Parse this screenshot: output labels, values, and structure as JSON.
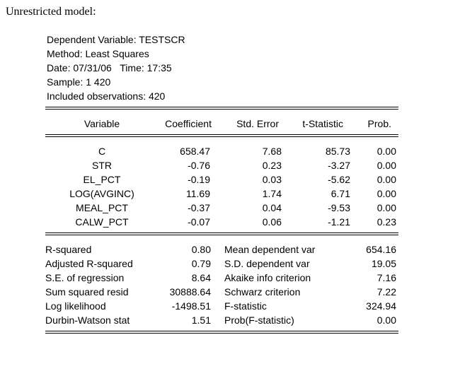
{
  "heading": "Unrestricted model:",
  "header_lines": [
    "Dependent Variable: TESTSCR",
    "Method: Least Squares",
    "Date: 07/31/06   Time: 17:35",
    "Sample: 1 420",
    "Included observations: 420"
  ],
  "columns": {
    "variable": "Variable",
    "coefficient": "Coefficient",
    "std_error": "Std. Error",
    "t_statistic": "t-Statistic",
    "prob": "Prob."
  },
  "rows": [
    {
      "variable": "C",
      "coefficient": "658.47",
      "std_error": "7.68",
      "t_statistic": "85.73",
      "prob": "0.00"
    },
    {
      "variable": "STR",
      "coefficient": "-0.76",
      "std_error": "0.23",
      "t_statistic": "-3.27",
      "prob": "0.00"
    },
    {
      "variable": "EL_PCT",
      "coefficient": "-0.19",
      "std_error": "0.03",
      "t_statistic": "-5.62",
      "prob": "0.00"
    },
    {
      "variable": "LOG(AVGINC)",
      "coefficient": "11.69",
      "std_error": "1.74",
      "t_statistic": "6.71",
      "prob": "0.00"
    },
    {
      "variable": "MEAL_PCT",
      "coefficient": "-0.37",
      "std_error": "0.04",
      "t_statistic": "-9.53",
      "prob": "0.00"
    },
    {
      "variable": "CALW_PCT",
      "coefficient": "-0.07",
      "std_error": "0.06",
      "t_statistic": "-1.21",
      "prob": "0.23"
    }
  ],
  "stats": [
    {
      "label1": "R-squared",
      "value1": "0.80",
      "label2": "Mean dependent var",
      "value2": "654.16"
    },
    {
      "label1": "Adjusted R-squared",
      "value1": "0.79",
      "label2": "S.D. dependent var",
      "value2": "19.05"
    },
    {
      "label1": "S.E. of regression",
      "value1": "8.64",
      "label2": "Akaike info criterion",
      "value2": "7.16"
    },
    {
      "label1": "Sum squared resid",
      "value1": "30888.64",
      "label2": "Schwarz criterion",
      "value2": "7.22"
    },
    {
      "label1": "Log likelihood",
      "value1": "-1498.51",
      "label2": "F-statistic",
      "value2": "324.94"
    },
    {
      "label1": "Durbin-Watson stat",
      "value1": "1.51",
      "label2": "Prob(F-statistic)",
      "value2": "0.00"
    }
  ]
}
